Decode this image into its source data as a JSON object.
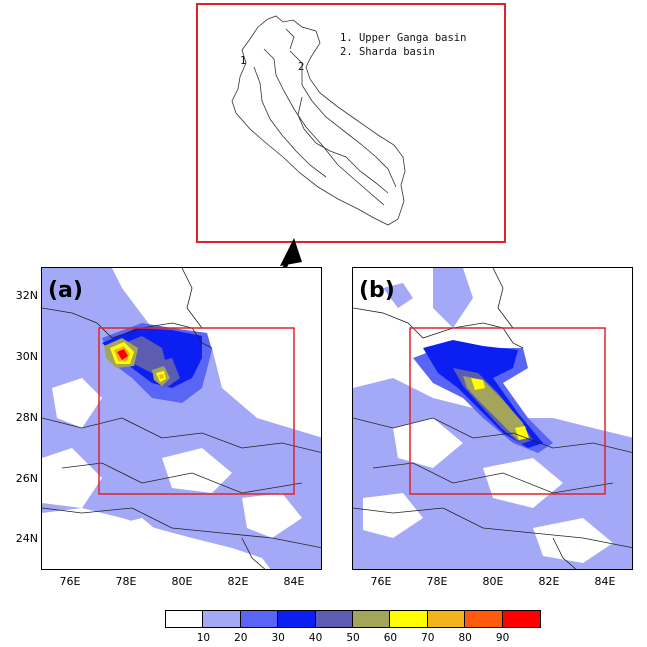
{
  "inset": {
    "legend": [
      "1. Upper Ganga basin",
      "2. Sharda basin"
    ],
    "basin_numbers": [
      "1",
      "2"
    ]
  },
  "panels": [
    {
      "label": "(a)"
    },
    {
      "label": "(b)"
    }
  ],
  "axes": {
    "y_ticks": [
      "32N",
      "30N",
      "28N",
      "26N",
      "24N"
    ],
    "x_ticks": [
      "76E",
      "78E",
      "80E",
      "82E",
      "84E"
    ]
  },
  "colorbar": {
    "colors": [
      "#ffffff",
      "#a3a9f7",
      "#5865f5",
      "#0b1ff2",
      "#5c5cb2",
      "#a3a65a",
      "#ffff00",
      "#f2b41d",
      "#ff5b0d",
      "#ff0000"
    ],
    "labels": [
      "10",
      "20",
      "30",
      "40",
      "50",
      "60",
      "70",
      "80",
      "90"
    ]
  },
  "colors": {
    "box_outline": "#e0232a"
  }
}
